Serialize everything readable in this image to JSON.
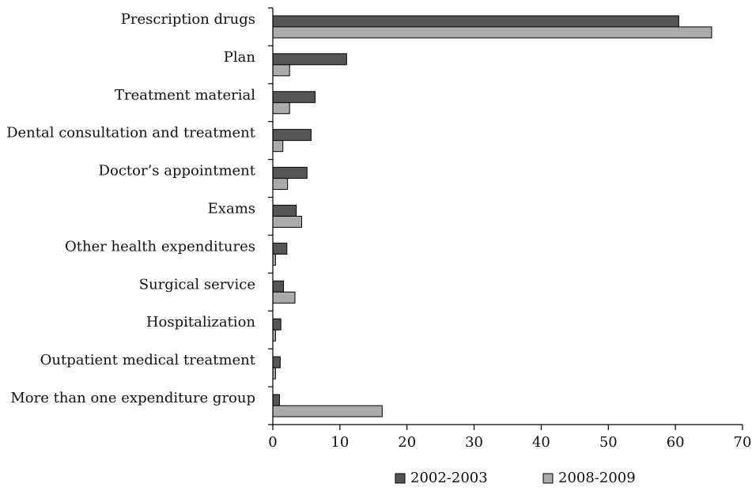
{
  "chart_data": {
    "type": "bar",
    "orientation": "horizontal",
    "title": "",
    "xlabel": "",
    "ylabel": "",
    "xlim": [
      0,
      70
    ],
    "xticks": [
      "0",
      "10",
      "20",
      "30",
      "40",
      "50",
      "60",
      "70"
    ],
    "grid": false,
    "legend_position": "bottom",
    "categories": [
      "Prescription drugs",
      "Plan",
      "Treatment material",
      "Dental consultation and treatment",
      "Doctor’s appointment",
      "Exams",
      "Other health expenditures",
      "Surgical service",
      "Hospitalization",
      "Outpatient medical treatment",
      "More than one expenditure group"
    ],
    "series": [
      {
        "name": "2002-2003",
        "color": "#555555",
        "values": [
          60.5,
          11.0,
          6.3,
          5.7,
          5.1,
          3.5,
          2.1,
          1.6,
          1.2,
          1.1,
          1.0
        ]
      },
      {
        "name": "2008-2009",
        "color": "#ababab",
        "values": [
          65.4,
          2.5,
          2.5,
          1.5,
          2.2,
          4.3,
          0.4,
          3.3,
          0.4,
          0.4,
          16.3
        ]
      }
    ]
  }
}
